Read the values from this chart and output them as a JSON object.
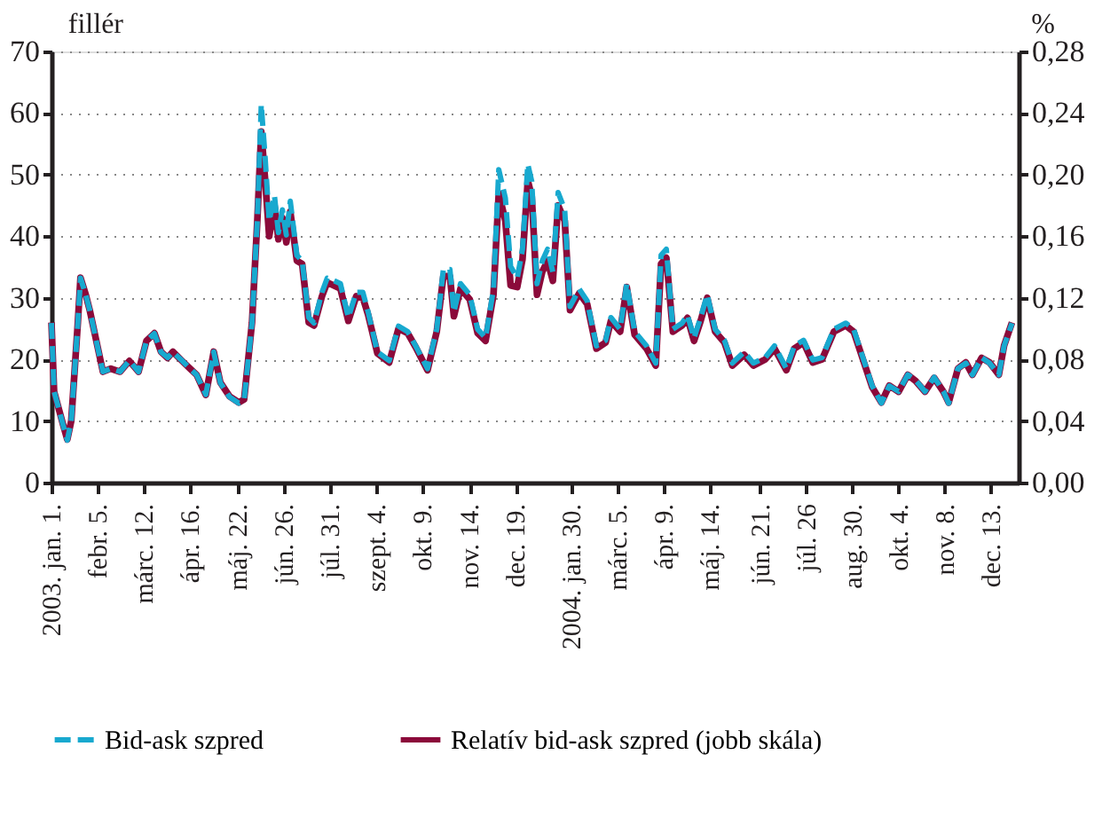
{
  "chart_data": {
    "type": "line",
    "ylabel": "fillér",
    "y2label": "%",
    "x": [
      "2003-01-01",
      "2003-01-03",
      "2003-01-10",
      "2003-01-13",
      "2003-01-16",
      "2003-01-21",
      "2003-01-23",
      "2003-01-27",
      "2003-01-30",
      "2003-02-05",
      "2003-02-09",
      "2003-02-15",
      "2003-02-22",
      "2003-03-01",
      "2003-03-08",
      "2003-03-14",
      "2003-03-20",
      "2003-03-25",
      "2003-03-30",
      "2003-04-03",
      "2003-04-10",
      "2003-04-16",
      "2003-04-21",
      "2003-04-28",
      "2003-05-04",
      "2003-05-09",
      "2003-05-16",
      "2003-05-23",
      "2003-05-27",
      "2003-06-02",
      "2003-06-06",
      "2003-06-09",
      "2003-06-12",
      "2003-06-15",
      "2003-06-19",
      "2003-06-22",
      "2003-06-25",
      "2003-06-28",
      "2003-07-01",
      "2003-07-06",
      "2003-07-10",
      "2003-07-15",
      "2003-07-19",
      "2003-07-25",
      "2003-07-29",
      "2003-08-03",
      "2003-08-08",
      "2003-08-14",
      "2003-08-20",
      "2003-08-25",
      "2003-08-29",
      "2003-09-05",
      "2003-09-14",
      "2003-09-21",
      "2003-09-28",
      "2003-10-04",
      "2003-10-13",
      "2003-10-20",
      "2003-10-25",
      "2003-10-30",
      "2003-11-02",
      "2003-11-07",
      "2003-11-14",
      "2003-11-20",
      "2003-11-26",
      "2003-12-02",
      "2003-12-06",
      "2003-12-11",
      "2003-12-15",
      "2003-12-20",
      "2003-12-24",
      "2003-12-28",
      "2003-12-31",
      "2004-01-04",
      "2004-01-08",
      "2004-01-12",
      "2004-01-16",
      "2004-01-20",
      "2004-01-25",
      "2004-01-29",
      "2004-02-05",
      "2004-02-11",
      "2004-02-18",
      "2004-02-25",
      "2004-02-29",
      "2004-03-07",
      "2004-03-12",
      "2004-03-18",
      "2004-03-27",
      "2004-04-03",
      "2004-04-07",
      "2004-04-11",
      "2004-04-16",
      "2004-04-23",
      "2004-04-27",
      "2004-05-02",
      "2004-05-07",
      "2004-05-12",
      "2004-05-18",
      "2004-05-25",
      "2004-05-31",
      "2004-06-09",
      "2004-06-16",
      "2004-06-25",
      "2004-07-02",
      "2004-07-11",
      "2004-07-17",
      "2004-07-24",
      "2004-07-31",
      "2004-08-07",
      "2004-08-16",
      "2004-08-25",
      "2004-08-31",
      "2004-09-07",
      "2004-09-14",
      "2004-09-21",
      "2004-09-27",
      "2004-10-04",
      "2004-10-11",
      "2004-10-17",
      "2004-10-24",
      "2004-10-31",
      "2004-11-07",
      "2004-11-11",
      "2004-11-18",
      "2004-11-24",
      "2004-11-29",
      "2004-12-06",
      "2004-12-12",
      "2004-12-19",
      "2004-12-23",
      "2004-12-29"
    ],
    "series": [
      {
        "name": "Bid-ask szpred",
        "color": "#18a9cf",
        "line_style": "dashed",
        "values": [
          25.9,
          14.8,
          9.2,
          6.9,
          10,
          25.9,
          33.2,
          30.5,
          28,
          22,
          18,
          18.5,
          18,
          19.8,
          18,
          23,
          24.2,
          21.2,
          20.3,
          21.2,
          19.8,
          18.5,
          17.5,
          14.3,
          21.2,
          16.2,
          13.9,
          12.9,
          13.4,
          25.9,
          42.5,
          61.4,
          52.6,
          42.5,
          46.6,
          40.6,
          44.3,
          40.2,
          45.7,
          36.9,
          36,
          26.8,
          25.9,
          30.9,
          33.2,
          32.8,
          32.3,
          26.8,
          30.9,
          30.9,
          27.7,
          21.2,
          19.8,
          25.4,
          24.5,
          22.2,
          18.5,
          24.9,
          34.6,
          34.6,
          27.7,
          32.3,
          30.5,
          24.9,
          23.5,
          31.4,
          50.8,
          46.2,
          35.1,
          33.2,
          37.9,
          51.7,
          48.9,
          32.3,
          36,
          37.9,
          34.2,
          47.1,
          44.3,
          28.6,
          31.4,
          29.5,
          22.2,
          23.1,
          26.8,
          24.9,
          32.3,
          24.5,
          22.2,
          19.4,
          36.9,
          37.9,
          24.9,
          25.9,
          27.2,
          23.5,
          26.8,
          30.5,
          24.9,
          23.1,
          19.4,
          21.2,
          19.4,
          20.3,
          22.2,
          18.5,
          22.2,
          23.1,
          19.9,
          20.3,
          24.9,
          25.9,
          24.9,
          20.3,
          15.7,
          12.9,
          15.7,
          14.8,
          17.5,
          16.6,
          14.8,
          17.1,
          14.8,
          12.9,
          18.5,
          19.4,
          17.5,
          20.3,
          19.4,
          17.5,
          22.2,
          25.9
        ]
      },
      {
        "name": "Relatív bid-ask szpred (jobb skála)",
        "color": "#8b0a3a",
        "axis": "y2",
        "line_style": "solid",
        "values": [
          0.104,
          0.059,
          0.037,
          0.028,
          0.04,
          0.104,
          0.133,
          0.122,
          0.112,
          0.088,
          0.072,
          0.074,
          0.072,
          0.079,
          0.072,
          0.092,
          0.097,
          0.085,
          0.081,
          0.085,
          0.079,
          0.074,
          0.07,
          0.057,
          0.085,
          0.065,
          0.056,
          0.052,
          0.054,
          0.104,
          0.17,
          0.228,
          0.196,
          0.16,
          0.18,
          0.158,
          0.172,
          0.156,
          0.176,
          0.144,
          0.142,
          0.104,
          0.102,
          0.121,
          0.13,
          0.128,
          0.126,
          0.105,
          0.121,
          0.12,
          0.109,
          0.084,
          0.078,
          0.1,
          0.097,
          0.088,
          0.073,
          0.098,
          0.134,
          0.134,
          0.108,
          0.126,
          0.119,
          0.097,
          0.092,
          0.122,
          0.188,
          0.17,
          0.128,
          0.127,
          0.145,
          0.196,
          0.186,
          0.122,
          0.137,
          0.144,
          0.131,
          0.18,
          0.17,
          0.112,
          0.123,
          0.116,
          0.087,
          0.091,
          0.105,
          0.098,
          0.127,
          0.096,
          0.087,
          0.076,
          0.142,
          0.146,
          0.098,
          0.102,
          0.107,
          0.092,
          0.105,
          0.12,
          0.098,
          0.091,
          0.076,
          0.083,
          0.076,
          0.08,
          0.087,
          0.073,
          0.087,
          0.091,
          0.078,
          0.08,
          0.098,
          0.102,
          0.098,
          0.08,
          0.062,
          0.052,
          0.063,
          0.059,
          0.07,
          0.066,
          0.059,
          0.068,
          0.059,
          0.052,
          0.074,
          0.078,
          0.07,
          0.081,
          0.078,
          0.07,
          0.089,
          0.104
        ]
      }
    ],
    "xlim": [
      "2003-01-01",
      "2005-01-03"
    ],
    "xticks": [
      {
        "value": "2003-01-01",
        "label": "2003. jan. 1."
      },
      {
        "value": "2003-02-05",
        "label": "febr. 5."
      },
      {
        "value": "2003-03-12",
        "label": "márc. 12."
      },
      {
        "value": "2003-04-16",
        "label": "ápr. 16."
      },
      {
        "value": "2003-05-22",
        "label": "máj. 22."
      },
      {
        "value": "2003-06-26",
        "label": "jún. 26."
      },
      {
        "value": "2003-07-31",
        "label": "júl. 31."
      },
      {
        "value": "2003-09-04",
        "label": "szept. 4."
      },
      {
        "value": "2003-10-09",
        "label": "okt. 9."
      },
      {
        "value": "2003-11-14",
        "label": "nov. 14."
      },
      {
        "value": "2003-12-19",
        "label": "dec. 19."
      },
      {
        "value": "2004-01-30",
        "label": "2004. jan. 30."
      },
      {
        "value": "2004-03-05",
        "label": "márc. 5."
      },
      {
        "value": "2004-04-09",
        "label": "ápr. 9."
      },
      {
        "value": "2004-05-14",
        "label": "máj. 14."
      },
      {
        "value": "2004-06-21",
        "label": "jún. 21."
      },
      {
        "value": "2004-07-26",
        "label": "júl. 26"
      },
      {
        "value": "2004-08-30",
        "label": "aug. 30."
      },
      {
        "value": "2004-10-04",
        "label": "okt. 4."
      },
      {
        "value": "2004-11-08",
        "label": "nov. 8."
      },
      {
        "value": "2004-12-13",
        "label": "dec. 13."
      }
    ],
    "ylim": [
      0,
      70
    ],
    "yticks": [
      0,
      10,
      20,
      30,
      40,
      50,
      60,
      70
    ],
    "y2lim": [
      0,
      0.28
    ],
    "y2ticks": [
      {
        "value": 0,
        "label": "0,00"
      },
      {
        "value": 0.04,
        "label": "0,04"
      },
      {
        "value": 0.08,
        "label": "0,08"
      },
      {
        "value": 0.12,
        "label": "0,12"
      },
      {
        "value": 0.16,
        "label": "0,16"
      },
      {
        "value": 0.2,
        "label": "0,20"
      },
      {
        "value": 0.24,
        "label": "0,24"
      },
      {
        "value": 0.28,
        "label": "0,28"
      }
    ],
    "grid": "y",
    "legend": "bottom",
    "marker": "none"
  }
}
